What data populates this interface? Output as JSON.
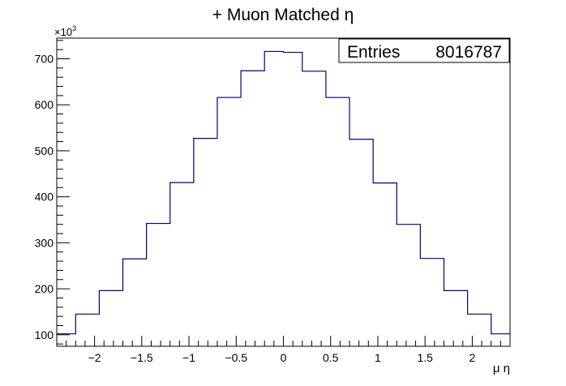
{
  "chart_data": {
    "type": "histogram",
    "title": "+ Muon Matched η",
    "xlabel": "μ η",
    "ylabel": "",
    "y_multiplier_label": "×10",
    "y_multiplier_exponent": "3",
    "stats": {
      "label": "Entries",
      "value": "8016787"
    },
    "xlim": [
      -2.4,
      2.4
    ],
    "ylim": [
      75,
      745
    ],
    "x_ticks": [
      -2,
      -1.5,
      -1,
      -0.5,
      0,
      0.5,
      1,
      1.5,
      2
    ],
    "x_tick_labels": [
      "−2",
      "−1.5",
      "−1",
      "−0.5",
      "0",
      "0.5",
      "1",
      "1.5",
      "2"
    ],
    "y_ticks": [
      100,
      200,
      300,
      400,
      500,
      600,
      700
    ],
    "y_tick_labels": [
      "100",
      "200",
      "300",
      "400",
      "500",
      "600",
      "700"
    ],
    "bin_edges": [
      -2.4,
      -2.2,
      -1.95,
      -1.7,
      -1.45,
      -1.2,
      -0.95,
      -0.7,
      -0.45,
      -0.2,
      0,
      0.2,
      0.45,
      0.7,
      0.95,
      1.2,
      1.45,
      1.7,
      1.95,
      2.2,
      2.4
    ],
    "values": [
      102,
      145,
      196,
      265,
      342,
      431,
      527,
      616,
      674,
      716,
      714,
      673,
      616,
      525,
      430,
      340,
      266,
      196,
      145,
      102
    ],
    "line_color": "#000080",
    "grid": false
  }
}
